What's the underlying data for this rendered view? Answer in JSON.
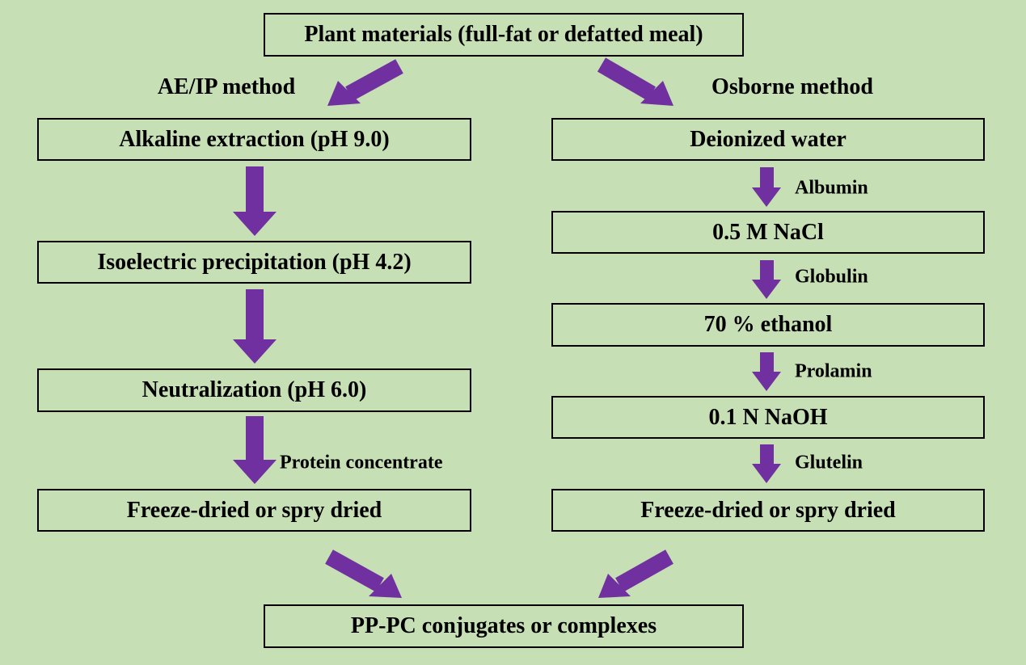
{
  "colors": {
    "background": "#c6dfb4",
    "arrow": "#7030a0",
    "border": "#000000"
  },
  "top": "Plant materials (full-fat or defatted meal)",
  "left": {
    "method": "AE/IP method",
    "steps": [
      "Alkaline extraction (pH 9.0)",
      "Isoelectric precipitation (pH 4.2)",
      "Neutralization (pH 6.0)",
      "Freeze-dried or spry dried"
    ],
    "arrow_label": "Protein concentrate"
  },
  "right": {
    "method": "Osborne method",
    "steps": [
      "Deionized water",
      "0.5 M NaCl",
      "70 % ethanol",
      "0.1 N NaOH",
      "Freeze-dried or spry dried"
    ],
    "arrow_labels": [
      "Albumin",
      "Globulin",
      "Prolamin",
      "Glutelin"
    ]
  },
  "bottom": "PP-PC conjugates or complexes"
}
